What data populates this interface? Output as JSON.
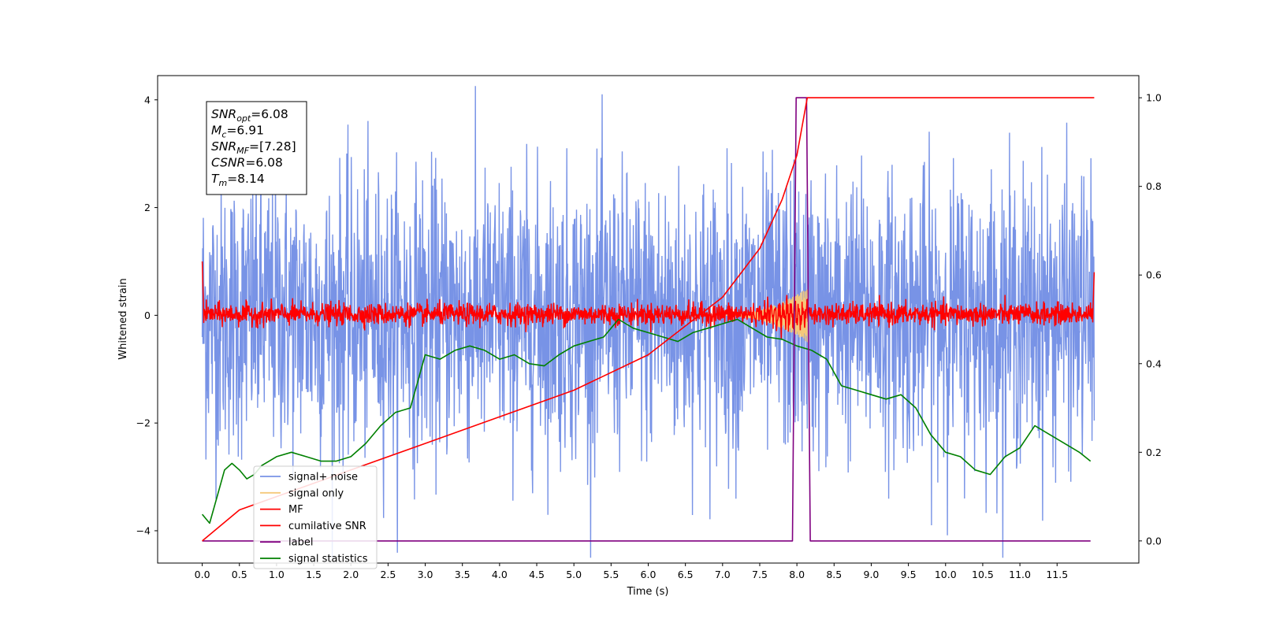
{
  "chart_data": {
    "type": "line",
    "title": "",
    "xlabel": "Time (s)",
    "ylabel": "Whitened strain",
    "xlim": [
      -0.6,
      12.6
    ],
    "ylim": [
      -4.6,
      4.45
    ],
    "y2lim": [
      -0.05,
      1.05
    ],
    "xticks": [
      "0.0",
      "0.5",
      "1.0",
      "1.5",
      "2.0",
      "2.5",
      "3.0",
      "3.5",
      "4.0",
      "4.5",
      "5.0",
      "5.5",
      "6.0",
      "6.5",
      "7.0",
      "7.5",
      "8.0",
      "8.5",
      "9.0",
      "9.5",
      "10.0",
      "10.5",
      "11.0",
      "11.5"
    ],
    "yticks": [
      "-4",
      "-2",
      "0",
      "2",
      "4"
    ],
    "y2ticks": [
      "0.0",
      "0.2",
      "0.4",
      "0.6",
      "0.8",
      "1.0"
    ],
    "grid": false,
    "legend_position": "lower-left",
    "annotation": [
      {
        "var": "SNR",
        "sub": "opt",
        "value": "=6.08"
      },
      {
        "var": "M",
        "sub": "c",
        "value": "=6.91"
      },
      {
        "var": "SNR",
        "sub": "MF",
        "value": "=[7.28]"
      },
      {
        "var": "CSNR",
        "sub": "",
        "value": "=6.08"
      },
      {
        "var": "T",
        "sub": "m",
        "value": "=8.14"
      }
    ],
    "series": [
      {
        "name": "signal+ noise",
        "color": "#7893e6",
        "axis": "left",
        "description_range": [
          -4.0,
          4.0
        ],
        "x_range": [
          0.0,
          12.0
        ]
      },
      {
        "name": "signal only",
        "color": "#f5c97a",
        "axis": "left",
        "x_range": [
          7.0,
          8.14
        ],
        "peak_amplitude": 0.5
      },
      {
        "name": "MF",
        "color": "#ff0000",
        "axis": "left",
        "x_range": [
          0.0,
          12.0
        ],
        "typical_range": [
          -0.2,
          0.3
        ]
      },
      {
        "name": "cumilative SNR",
        "color": "#ff0000",
        "axis": "right",
        "x": [
          0.0,
          0.5,
          1.0,
          2.0,
          3.0,
          4.0,
          5.0,
          6.0,
          7.0,
          7.5,
          7.8,
          8.0,
          8.14,
          12.0
        ],
        "values": [
          0.0,
          0.07,
          0.1,
          0.16,
          0.22,
          0.28,
          0.34,
          0.42,
          0.55,
          0.66,
          0.77,
          0.87,
          1.0,
          1.0
        ]
      },
      {
        "name": "label",
        "color": "#800080",
        "axis": "right",
        "x": [
          0.0,
          7.94,
          7.99,
          8.13,
          8.18,
          11.95
        ],
        "values": [
          0.0,
          0.0,
          1.0,
          1.0,
          0.0,
          0.0
        ]
      },
      {
        "name": "signal statistics",
        "color": "#008000",
        "axis": "right",
        "x": [
          0.0,
          0.1,
          0.2,
          0.3,
          0.4,
          0.5,
          0.6,
          0.7,
          0.8,
          0.9,
          1.0,
          1.2,
          1.4,
          1.6,
          1.8,
          2.0,
          2.2,
          2.4,
          2.6,
          2.8,
          2.9,
          3.0,
          3.2,
          3.4,
          3.6,
          3.8,
          4.0,
          4.2,
          4.4,
          4.6,
          4.8,
          5.0,
          5.2,
          5.4,
          5.6,
          5.8,
          6.0,
          6.2,
          6.4,
          6.6,
          6.8,
          7.0,
          7.2,
          7.4,
          7.6,
          7.8,
          8.0,
          8.2,
          8.4,
          8.6,
          8.8,
          9.0,
          9.2,
          9.4,
          9.6,
          9.8,
          10.0,
          10.2,
          10.4,
          10.6,
          10.8,
          11.0,
          11.2,
          11.4,
          11.6,
          11.8,
          11.95
        ],
        "values": [
          0.06,
          0.04,
          0.1,
          0.16,
          0.175,
          0.16,
          0.14,
          0.15,
          0.17,
          0.18,
          0.19,
          0.2,
          0.19,
          0.18,
          0.18,
          0.19,
          0.22,
          0.26,
          0.29,
          0.3,
          0.36,
          0.42,
          0.41,
          0.43,
          0.44,
          0.43,
          0.41,
          0.42,
          0.4,
          0.395,
          0.42,
          0.44,
          0.45,
          0.46,
          0.5,
          0.48,
          0.47,
          0.46,
          0.45,
          0.47,
          0.48,
          0.49,
          0.5,
          0.48,
          0.46,
          0.455,
          0.44,
          0.43,
          0.41,
          0.35,
          0.34,
          0.33,
          0.32,
          0.33,
          0.3,
          0.24,
          0.2,
          0.19,
          0.16,
          0.15,
          0.19,
          0.21,
          0.26,
          0.24,
          0.22,
          0.2,
          0.18
        ]
      }
    ]
  }
}
